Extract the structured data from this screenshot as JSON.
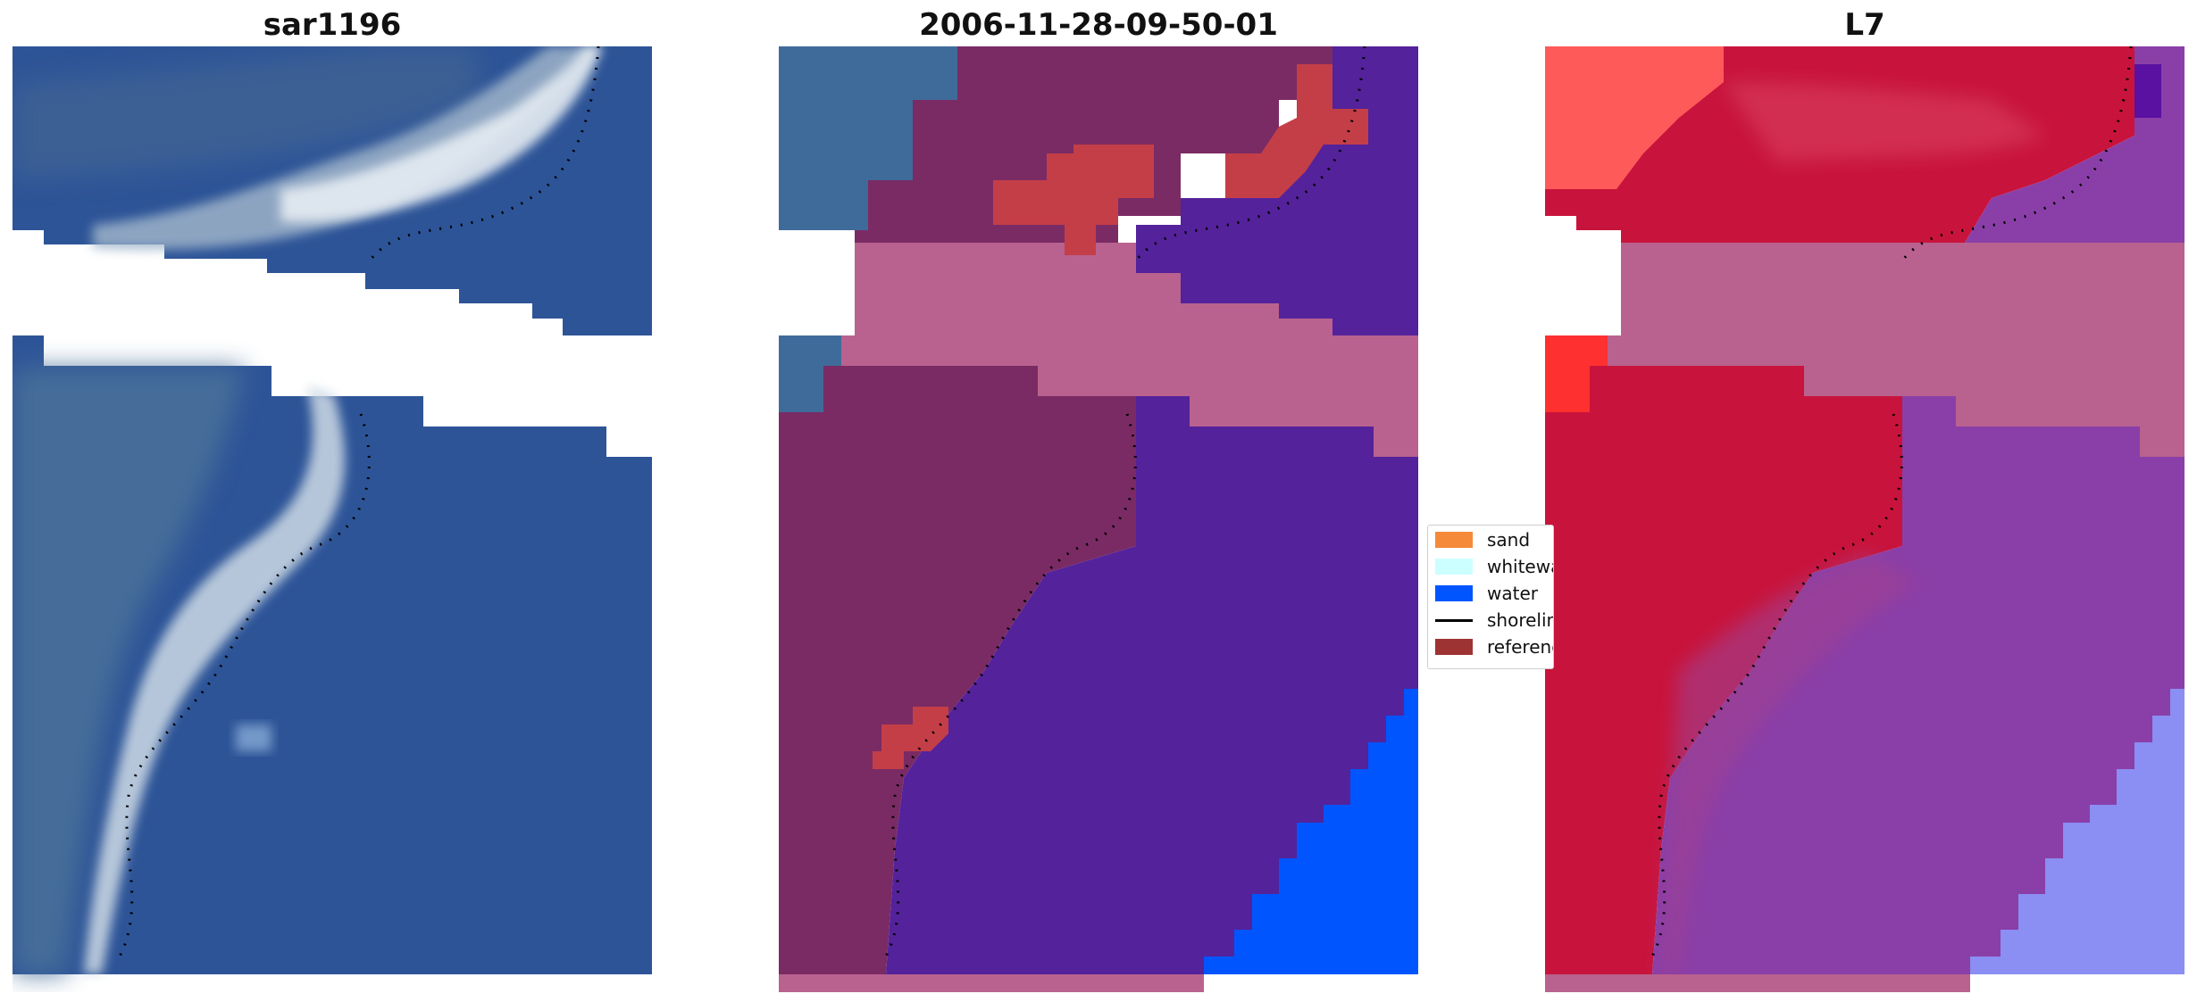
{
  "panels": [
    {
      "title": "sar1196"
    },
    {
      "title": "2006-11-28-09-50-01"
    },
    {
      "title": "L7"
    }
  ],
  "legend": {
    "items": [
      {
        "label": "sand",
        "color": "#f58a3a",
        "kind": "patch"
      },
      {
        "label": "whitewater",
        "color": "#ccffff",
        "kind": "patch"
      },
      {
        "label": "water",
        "color": "#0055ff",
        "kind": "patch"
      },
      {
        "label": "shoreline",
        "color": "#000000",
        "kind": "line"
      },
      {
        "label": "reference",
        "color": "#9e3333",
        "kind": "patch"
      }
    ]
  },
  "colors": {
    "ocean": "#2d5497",
    "nodata_pink": "#b9628f",
    "land_class": "#7a2b64",
    "water_class": "#54229a",
    "water_pure": "#0055ff",
    "reference_red": "#c43e48",
    "index_red": "#c8143c",
    "index_purple": "#8a3fa8"
  }
}
